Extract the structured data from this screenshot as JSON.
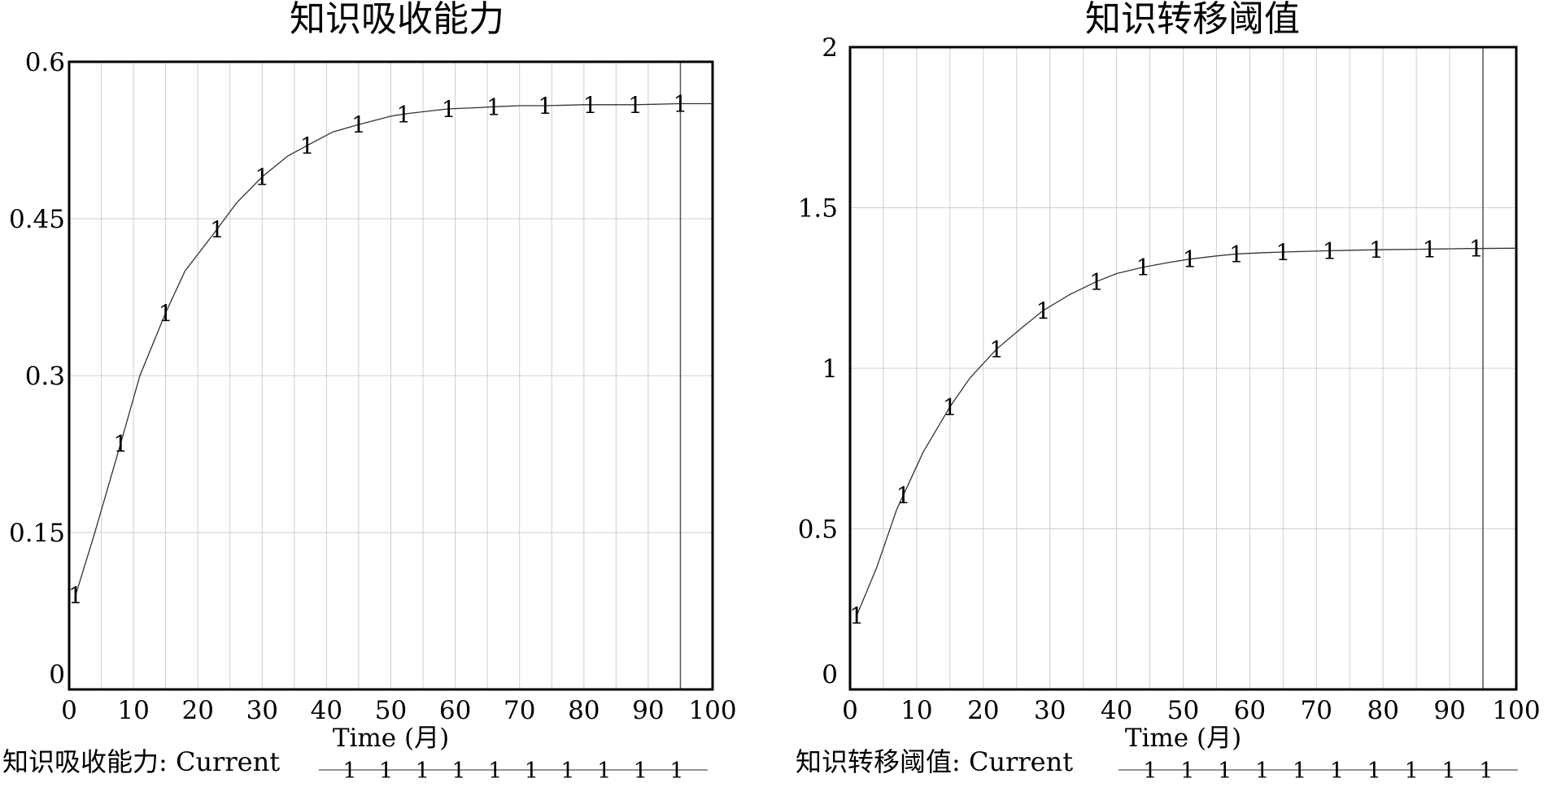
{
  "chart_data": [
    {
      "type": "line",
      "title": "知识吸收能力",
      "xlabel": "Time (月)",
      "ylabel": "",
      "xlim": [
        0,
        100
      ],
      "ylim": [
        0,
        0.6
      ],
      "xticks": [
        "0",
        "10",
        "20",
        "30",
        "40",
        "50",
        "60",
        "70",
        "80",
        "90",
        "100"
      ],
      "yticks": [
        "0",
        "0.15",
        "0.3",
        "0.45",
        "0.6"
      ],
      "grid": true,
      "current_time_line": 95,
      "series": [
        {
          "name": "知识吸收能力",
          "marker": "1",
          "x": [
            1,
            4,
            8,
            11,
            15,
            18,
            23,
            26,
            30,
            34,
            37,
            41,
            45,
            50,
            52,
            56,
            59,
            63,
            66,
            70,
            74,
            80,
            81,
            88,
            95,
            100
          ],
          "y": [
            0.09,
            0.15,
            0.235,
            0.3,
            0.36,
            0.4,
            0.44,
            0.465,
            0.49,
            0.51,
            0.52,
            0.533,
            0.54,
            0.548,
            0.55,
            0.553,
            0.555,
            0.556,
            0.557,
            0.558,
            0.558,
            0.559,
            0.559,
            0.559,
            0.56,
            0.56
          ],
          "marker_x": [
            1,
            8,
            15,
            23,
            30,
            37,
            45,
            52,
            59,
            66,
            74,
            81,
            88,
            95
          ]
        }
      ],
      "legend": {
        "label": "知识吸收能力: Current",
        "marker": "1",
        "marker_count": 10
      }
    },
    {
      "type": "line",
      "title": "知识转移阈值",
      "xlabel": "Time (月)",
      "ylabel": "",
      "xlim": [
        0,
        100
      ],
      "ylim": [
        0,
        2
      ],
      "xticks": [
        "0",
        "10",
        "20",
        "30",
        "40",
        "50",
        "60",
        "70",
        "80",
        "90",
        "100"
      ],
      "yticks": [
        "0",
        "0.5",
        "1",
        "1.5",
        "2"
      ],
      "grid": true,
      "current_time_line": 95,
      "series": [
        {
          "name": "知识转移阈值",
          "marker": "1",
          "x": [
            1,
            4,
            7,
            11,
            15,
            18,
            22,
            26,
            29,
            33,
            37,
            40,
            44,
            48,
            51,
            55,
            58,
            62,
            65,
            72,
            79,
            86,
            93,
            100
          ],
          "y": [
            0.23,
            0.38,
            0.56,
            0.74,
            0.88,
            0.97,
            1.06,
            1.13,
            1.18,
            1.23,
            1.27,
            1.295,
            1.315,
            1.33,
            1.34,
            1.35,
            1.356,
            1.36,
            1.362,
            1.366,
            1.369,
            1.371,
            1.373,
            1.374
          ],
          "marker_x": [
            1,
            8,
            15,
            22,
            29,
            37,
            44,
            51,
            58,
            65,
            72,
            79,
            87,
            94
          ]
        }
      ],
      "legend": {
        "label": "知识转移阈值: Current",
        "marker": "1",
        "marker_count": 10
      }
    }
  ]
}
